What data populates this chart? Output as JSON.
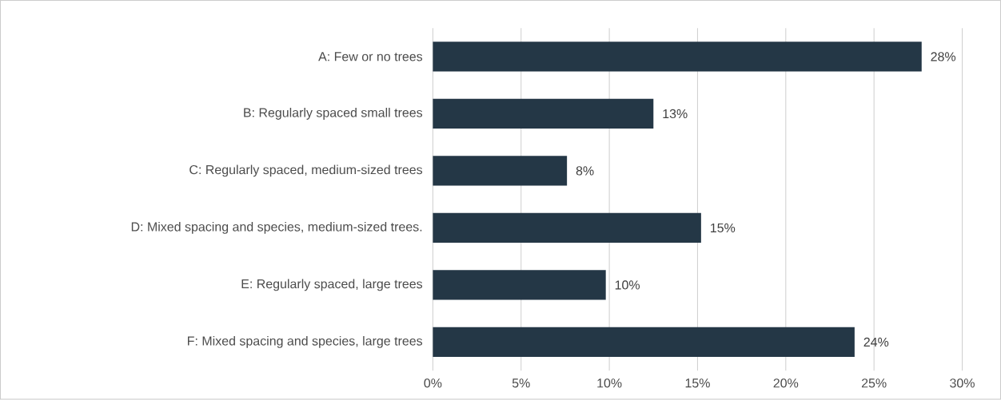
{
  "chart_data": {
    "type": "bar",
    "orientation": "horizontal",
    "categories": [
      "A: Few or no trees",
      "B: Regularly spaced small trees",
      "C: Regularly spaced, medium-sized trees",
      "D: Mixed spacing and species, medium-sized trees.",
      "E: Regularly spaced, large trees",
      "F: Mixed spacing and species, large trees"
    ],
    "values": [
      27.7,
      12.5,
      7.6,
      15.2,
      9.8,
      23.9
    ],
    "value_labels": [
      "28%",
      "13%",
      "8%",
      "15%",
      "10%",
      "24%"
    ],
    "color": "#243746",
    "xlim": [
      0,
      30
    ],
    "xticks": [
      {
        "value": 0,
        "label": "0%"
      },
      {
        "value": 5,
        "label": "5%"
      },
      {
        "value": 10,
        "label": "10%"
      },
      {
        "value": 15,
        "label": "15%"
      },
      {
        "value": 20,
        "label": "20%"
      },
      {
        "value": 25,
        "label": "25%"
      },
      {
        "value": 30,
        "label": "30%"
      }
    ],
    "grid": "x"
  }
}
